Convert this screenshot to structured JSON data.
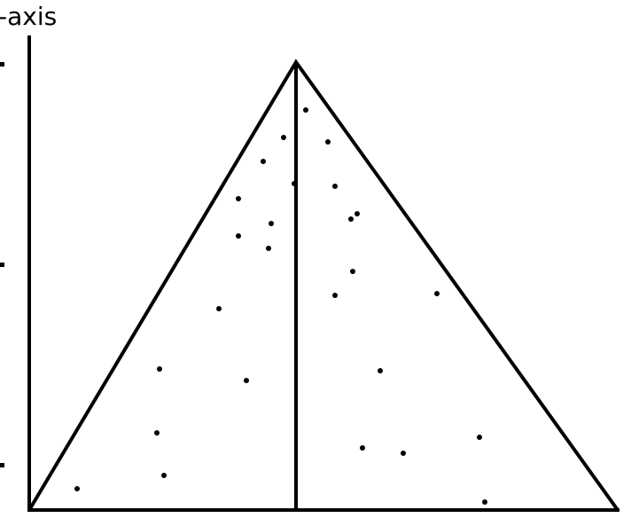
{
  "chart_data": {
    "type": "scatter",
    "y_label": "-axis",
    "x": [
      312,
      287,
      337,
      264,
      299,
      345,
      236,
      370,
      363,
      273,
      236,
      270,
      365,
      345,
      460,
      214,
      147,
      396,
      245,
      144,
      508,
      376,
      422,
      152,
      54,
      514
    ],
    "values": [
      450,
      419,
      414,
      392,
      367,
      364,
      350,
      333,
      327,
      322,
      308,
      294,
      268,
      241,
      243,
      226,
      158,
      156,
      145,
      86,
      81,
      69,
      63,
      38,
      23,
      8
    ],
    "color": "#000000",
    "xlim": [
      0,
      664
    ],
    "ylim": [
      0,
      504
    ],
    "yticks": [
      50,
      276,
      502
    ]
  }
}
